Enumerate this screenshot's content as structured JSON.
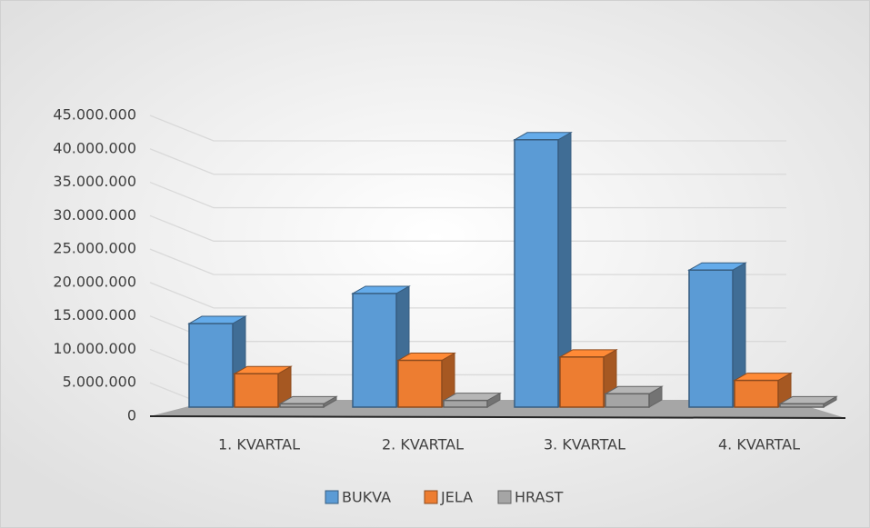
{
  "chart_data": {
    "type": "bar3d",
    "categories": [
      "1. KVARTAL",
      "2. KVARTAL",
      "3. KVARTAL",
      "4. KVARTAL"
    ],
    "series": [
      {
        "name": "BUKVA",
        "color": "#5b9bd5",
        "values": [
          12500000,
          17000000,
          40000000,
          20500000
        ]
      },
      {
        "name": "JELA",
        "color": "#ed7d31",
        "values": [
          5000000,
          7000000,
          7500000,
          4000000
        ]
      },
      {
        "name": "HRAST",
        "color": "#a5a5a5",
        "values": [
          500000,
          1000000,
          2000000,
          500000
        ]
      }
    ],
    "ylim": [
      0,
      45000000
    ],
    "yticks": [
      0,
      {
        "value": 5000000,
        "label": "5.000.000"
      },
      {
        "value": 10000000,
        "label": "10.000.000"
      },
      {
        "value": 15000000,
        "label": "15.000.000"
      },
      {
        "value": 20000000,
        "label": "20.000.000"
      },
      {
        "value": 25000000,
        "label": "25.000.000"
      },
      {
        "value": 30000000,
        "label": "30.000.000"
      },
      {
        "value": 35000000,
        "label": "35.000.000"
      },
      {
        "value": 40000000,
        "label": "40.000.000"
      },
      {
        "value": 45000000,
        "label": "45.000.000"
      }
    ],
    "grid": true,
    "legend": "bottom"
  }
}
